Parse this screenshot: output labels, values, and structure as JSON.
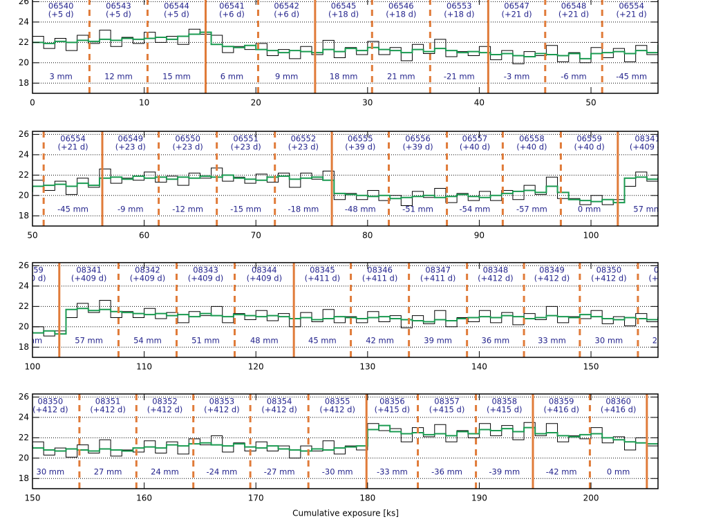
{
  "chart_data": {
    "type": "line",
    "xlabel": "Cumulative exposure [ks]",
    "ylim": [
      17,
      26.3
    ],
    "yticks": [
      18,
      20,
      22,
      24,
      26
    ],
    "grid": true,
    "panels": [
      {
        "xlim": [
          0,
          56
        ],
        "xticks": [
          0,
          10,
          20,
          30,
          40,
          50
        ]
      },
      {
        "xlim": [
          50,
          106
        ],
        "xticks": [
          50,
          60,
          70,
          80,
          90,
          100
        ]
      },
      {
        "xlim": [
          100,
          156
        ],
        "xticks": [
          100,
          110,
          120,
          130,
          140,
          150
        ]
      },
      {
        "xlim": [
          150,
          206
        ],
        "xticks": [
          150,
          160,
          170,
          180,
          190,
          200
        ]
      }
    ],
    "boundaries": [
      {
        "x": 5.1,
        "style": "dashed"
      },
      {
        "x": 10.3,
        "style": "dashed"
      },
      {
        "x": 15.5,
        "style": "solid"
      },
      {
        "x": 20.2,
        "style": "dashed"
      },
      {
        "x": 25.3,
        "style": "solid"
      },
      {
        "x": 30.4,
        "style": "dashed"
      },
      {
        "x": 35.6,
        "style": "dashed"
      },
      {
        "x": 40.8,
        "style": "solid"
      },
      {
        "x": 45.9,
        "style": "dashed"
      },
      {
        "x": 51.0,
        "style": "dashed"
      },
      {
        "x": 56.25,
        "style": "solid"
      },
      {
        "x": 61.3,
        "style": "dashed"
      },
      {
        "x": 66.5,
        "style": "dashed"
      },
      {
        "x": 71.7,
        "style": "dashed"
      },
      {
        "x": 76.8,
        "style": "solid"
      },
      {
        "x": 81.9,
        "style": "dashed"
      },
      {
        "x": 87.1,
        "style": "dashed"
      },
      {
        "x": 92.1,
        "style": "dashed"
      },
      {
        "x": 97.3,
        "style": "dashed"
      },
      {
        "x": 102.4,
        "style": "solid"
      },
      {
        "x": 107.7,
        "style": "dashed"
      },
      {
        "x": 112.9,
        "style": "dashed"
      },
      {
        "x": 118.1,
        "style": "dashed"
      },
      {
        "x": 123.4,
        "style": "solid"
      },
      {
        "x": 128.5,
        "style": "dashed"
      },
      {
        "x": 133.7,
        "style": "dashed"
      },
      {
        "x": 138.9,
        "style": "dashed"
      },
      {
        "x": 144.0,
        "style": "dashed"
      },
      {
        "x": 149.0,
        "style": "dashed"
      },
      {
        "x": 154.2,
        "style": "dashed"
      },
      {
        "x": 159.3,
        "style": "dashed"
      },
      {
        "x": 164.4,
        "style": "dashed"
      },
      {
        "x": 169.5,
        "style": "dashed"
      },
      {
        "x": 174.7,
        "style": "dashed"
      },
      {
        "x": 179.9,
        "style": "solid"
      },
      {
        "x": 184.5,
        "style": "dashed"
      },
      {
        "x": 189.7,
        "style": "dashed"
      },
      {
        "x": 194.8,
        "style": "solid"
      },
      {
        "x": 199.9,
        "style": "dashed"
      },
      {
        "x": 205.0,
        "style": "solid"
      }
    ],
    "observations": [
      {
        "id": "06540",
        "offset": "(+5 d)",
        "tilt": "3 mm"
      },
      {
        "id": "06543",
        "offset": "(+5 d)",
        "tilt": "12 mm"
      },
      {
        "id": "06544",
        "offset": "(+5 d)",
        "tilt": "15 mm"
      },
      {
        "id": "06541",
        "offset": "(+6 d)",
        "tilt": "6 mm"
      },
      {
        "id": "06542",
        "offset": "(+6 d)",
        "tilt": "9 mm"
      },
      {
        "id": "06545",
        "offset": "(+18 d)",
        "tilt": "18 mm"
      },
      {
        "id": "06546",
        "offset": "(+18 d)",
        "tilt": "21 mm"
      },
      {
        "id": "06553",
        "offset": "(+18 d)",
        "tilt": "-21 mm"
      },
      {
        "id": "06547",
        "offset": "(+21 d)",
        "tilt": "-3 mm"
      },
      {
        "id": "06548",
        "offset": "(+21 d)",
        "tilt": "-6 mm"
      },
      {
        "id": "06554",
        "offset": "(+21 d)",
        "tilt": "-45 mm"
      },
      {
        "id": "06549",
        "offset": "(+23 d)",
        "tilt": "-9 mm"
      },
      {
        "id": "06550",
        "offset": "(+23 d)",
        "tilt": "-12 mm"
      },
      {
        "id": "06551",
        "offset": "(+23 d)",
        "tilt": "-15 mm"
      },
      {
        "id": "06552",
        "offset": "(+23 d)",
        "tilt": "-18 mm"
      },
      {
        "id": "06555",
        "offset": "(+39 d)",
        "tilt": "-48 mm"
      },
      {
        "id": "06556",
        "offset": "(+39 d)",
        "tilt": "-51 mm"
      },
      {
        "id": "06557",
        "offset": "(+40 d)",
        "tilt": "-54 mm"
      },
      {
        "id": "06558",
        "offset": "(+40 d)",
        "tilt": "-57 mm"
      },
      {
        "id": "06559",
        "offset": "(+40 d)",
        "tilt": "0 mm"
      },
      {
        "id": "08341",
        "offset": "(+409 d)",
        "tilt": "57 mm"
      },
      {
        "id": "08342",
        "offset": "(+409 d)",
        "tilt": "54 mm"
      },
      {
        "id": "08343",
        "offset": "(+409 d)",
        "tilt": "51 mm"
      },
      {
        "id": "08344",
        "offset": "(+409 d)",
        "tilt": "48 mm"
      },
      {
        "id": "08345",
        "offset": "(+411 d)",
        "tilt": "45 mm"
      },
      {
        "id": "08346",
        "offset": "(+411 d)",
        "tilt": "42 mm"
      },
      {
        "id": "08347",
        "offset": "(+411 d)",
        "tilt": "39 mm"
      },
      {
        "id": "08348",
        "offset": "(+412 d)",
        "tilt": "36 mm"
      },
      {
        "id": "08349",
        "offset": "(+412 d)",
        "tilt": "33 mm"
      },
      {
        "id": "08350",
        "offset": "(+412 d)",
        "tilt": "30 mm"
      },
      {
        "id": "08351",
        "offset": "(+412 d)",
        "tilt": "27 mm"
      },
      {
        "id": "08352",
        "offset": "(+412 d)",
        "tilt": "24 mm"
      },
      {
        "id": "08353",
        "offset": "(+412 d)",
        "tilt": "-24 mm"
      },
      {
        "id": "08354",
        "offset": "(+412 d)",
        "tilt": "-27 mm"
      },
      {
        "id": "08355",
        "offset": "(+412 d)",
        "tilt": "-30 mm"
      },
      {
        "id": "08356",
        "offset": "(+415 d)",
        "tilt": "-33 mm"
      },
      {
        "id": "08357",
        "offset": "(+415 d)",
        "tilt": "-36 mm"
      },
      {
        "id": "08358",
        "offset": "(+415 d)",
        "tilt": "-39 mm"
      },
      {
        "id": "08359",
        "offset": "(+416 d)",
        "tilt": "-42 mm"
      },
      {
        "id": "08360",
        "offset": "(+416 d)",
        "tilt": "0 mm"
      }
    ],
    "x": [
      0,
      1,
      2,
      3,
      4,
      5,
      6,
      7,
      8,
      9,
      10,
      11,
      12,
      13,
      14,
      15,
      16,
      17,
      18,
      19,
      20,
      21,
      22,
      23,
      24,
      25,
      26,
      27,
      28,
      29,
      30,
      31,
      32,
      33,
      34,
      35,
      36,
      37,
      38,
      39,
      40,
      41,
      42,
      43,
      44,
      45,
      46,
      47,
      48,
      49,
      50,
      51,
      52,
      53,
      54,
      55,
      56,
      57,
      58,
      59,
      60,
      61,
      62,
      63,
      64,
      65,
      66,
      67,
      68,
      69,
      70,
      71,
      72,
      73,
      74,
      75,
      76,
      77,
      78,
      79,
      80,
      81,
      82,
      83,
      84,
      85,
      86,
      87,
      88,
      89,
      90,
      91,
      92,
      93,
      94,
      95,
      96,
      97,
      98,
      99,
      100,
      101,
      102,
      103,
      104,
      105,
      106,
      107,
      108,
      109,
      110,
      111,
      112,
      113,
      114,
      115,
      116,
      117,
      118,
      119,
      120,
      121,
      122,
      123,
      124,
      125,
      126,
      127,
      128,
      129,
      130,
      131,
      132,
      133,
      134,
      135,
      136,
      137,
      138,
      139,
      140,
      141,
      142,
      143,
      144,
      145,
      146,
      147,
      148,
      149,
      150,
      151,
      152,
      153,
      154,
      155,
      156,
      157,
      158,
      159,
      160,
      161,
      162,
      163,
      164,
      165,
      166,
      167,
      168,
      169,
      170,
      171,
      172,
      173,
      174,
      175,
      176,
      177,
      178,
      179,
      180,
      181,
      182,
      183,
      184,
      185,
      186,
      187,
      188,
      189,
      190,
      191,
      192,
      193,
      194,
      195,
      196,
      197,
      198,
      199,
      200,
      201,
      202,
      203,
      204,
      205
    ],
    "series": [
      {
        "color": "#000000",
        "values": [
          22.6,
          21.4,
          22.4,
          21.2,
          22.7,
          21.9,
          23.2,
          21.6,
          22.5,
          21.9,
          23.0,
          22.0,
          22.6,
          21.8,
          23.3,
          22.8,
          22.7,
          21.0,
          21.6,
          21.3,
          21.9,
          20.7,
          21.3,
          20.4,
          21.6,
          20.8,
          22.2,
          20.5,
          21.5,
          20.8,
          22.1,
          20.8,
          21.5,
          20.2,
          21.8,
          20.9,
          22.3,
          20.6,
          21.1,
          20.7,
          21.6,
          20.3,
          21.2,
          19.9,
          21.1,
          20.7,
          21.7,
          20.1,
          21.0,
          20.0,
          21.5,
          20.5,
          21.4,
          20.1,
          21.7,
          20.8,
          22.6,
          21.2,
          21.7,
          21.5,
          22.3,
          21.3,
          21.9,
          21.0,
          22.2,
          21.7,
          22.7,
          21.4,
          21.8,
          21.2,
          22.1,
          21.3,
          22.2,
          20.8,
          22.2,
          21.6,
          22.4,
          19.6,
          20.2,
          19.6,
          20.5,
          19.5,
          20.0,
          19.0,
          20.4,
          19.8,
          20.7,
          19.3,
          20.2,
          19.5,
          20.4,
          19.5,
          20.5,
          19.6,
          21.0,
          20.1,
          21.8,
          19.7,
          19.7,
          19.1,
          20.0,
          19.1,
          19.6,
          20.9,
          22.3,
          21.4,
          22.6,
          20.9,
          21.5,
          20.9,
          21.8,
          20.8,
          21.4,
          20.4,
          21.5,
          21.1,
          22.0,
          20.4,
          21.3,
          20.7,
          21.6,
          20.6,
          21.3,
          20.0,
          21.4,
          20.5,
          21.7,
          20.4,
          21.0,
          20.4,
          21.5,
          20.5,
          21.1,
          19.9,
          21.1,
          20.3,
          21.6,
          20.0,
          20.9,
          20.5,
          21.6,
          20.4,
          21.4,
          20.2,
          21.3,
          20.7,
          22.0,
          20.4,
          21.0,
          20.8,
          21.6,
          20.3,
          21.0,
          20.1,
          21.3,
          20.5,
          21.8,
          20.2,
          20.8,
          20.6,
          21.7,
          20.5,
          21.6,
          20.4,
          21.9,
          21.3,
          22.2,
          20.6,
          21.5,
          20.7,
          21.6,
          20.7,
          21.2,
          20.0,
          21.2,
          20.7,
          21.7,
          20.4,
          21.2,
          20.8,
          23.4,
          22.7,
          22.9,
          21.6,
          23.0,
          22.1,
          23.3,
          21.6,
          22.7,
          22.0,
          23.4,
          22.2,
          23.2,
          21.8,
          23.5,
          22.2,
          23.4,
          21.6,
          22.2,
          21.9,
          23.0,
          21.5,
          22.1,
          20.8,
          22.0,
          21.2
        ]
      },
      {
        "color": "#1a9a50",
        "values": [
          22.0,
          21.9,
          22.1,
          22.0,
          22.2,
          22.1,
          22.3,
          22.2,
          22.4,
          22.3,
          22.4,
          22.5,
          22.3,
          22.6,
          22.8,
          23.0,
          21.8,
          21.6,
          21.5,
          21.7,
          21.3,
          21.2,
          21.0,
          21.2,
          21.1,
          21.0,
          21.3,
          21.1,
          21.4,
          21.2,
          21.5,
          21.3,
          21.2,
          21.0,
          21.3,
          21.1,
          21.4,
          21.2,
          21.0,
          21.1,
          21.0,
          20.8,
          20.9,
          20.7,
          20.6,
          20.9,
          20.8,
          20.7,
          20.9,
          20.4,
          20.9,
          21.0,
          21.1,
          20.9,
          21.2,
          21.0,
          21.7,
          21.8,
          21.6,
          21.9,
          21.7,
          21.8,
          21.6,
          21.8,
          21.7,
          21.9,
          21.8,
          22.0,
          21.7,
          21.6,
          21.5,
          21.8,
          21.9,
          21.6,
          21.7,
          21.8,
          21.5,
          20.2,
          20.1,
          20.0,
          19.9,
          20.0,
          19.7,
          19.8,
          19.9,
          20.0,
          19.8,
          19.9,
          20.1,
          19.9,
          19.8,
          20.0,
          20.2,
          20.4,
          20.5,
          20.3,
          20.9,
          20.3,
          19.6,
          19.5,
          19.4,
          19.6,
          19.3,
          21.7,
          21.8,
          21.6,
          21.7,
          21.5,
          21.4,
          21.3,
          21.2,
          21.3,
          21.1,
          21.2,
          21.0,
          21.3,
          21.1,
          21.0,
          21.2,
          21.1,
          21.0,
          21.1,
          21.0,
          20.8,
          20.9,
          20.7,
          20.8,
          21.0,
          20.9,
          20.8,
          20.9,
          21.0,
          20.8,
          20.7,
          20.6,
          20.5,
          20.7,
          20.6,
          20.8,
          20.9,
          21.0,
          20.9,
          21.1,
          21.0,
          20.8,
          20.9,
          21.1,
          21.0,
          20.9,
          21.2,
          21.0,
          20.8,
          20.7,
          20.9,
          20.8,
          20.7,
          20.9,
          20.8,
          20.7,
          21.0,
          21.1,
          21.0,
          21.3,
          21.2,
          21.4,
          21.5,
          21.3,
          21.2,
          21.4,
          21.1,
          21.0,
          21.2,
          20.9,
          20.8,
          20.7,
          20.9,
          20.8,
          21.0,
          21.1,
          21.2,
          22.8,
          23.2,
          22.6,
          22.4,
          22.5,
          22.3,
          22.4,
          22.2,
          22.6,
          22.4,
          22.8,
          22.7,
          22.9,
          22.6,
          23.0,
          22.4,
          22.5,
          22.2,
          22.1,
          22.3,
          22.4,
          22.0,
          21.8,
          21.6,
          21.5,
          21.4
        ]
      }
    ]
  }
}
